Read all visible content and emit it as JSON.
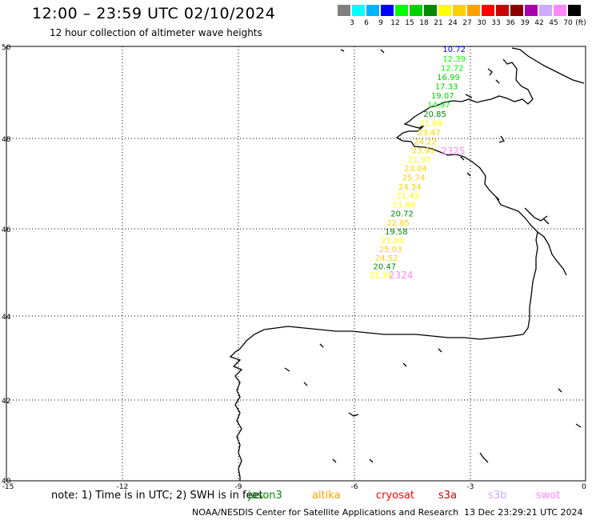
{
  "title": "12:00 – 23:59 UTC 02/10/2024",
  "subtitle": "12 hour collection of altimeter wave heights",
  "colorbar": {
    "unit": "(ft)",
    "colors": [
      "#7f7f7f",
      "#00ffff",
      "#00b4ff",
      "#0000ff",
      "#00ff00",
      "#00d000",
      "#008800",
      "#ffff00",
      "#ffd000",
      "#ffa000",
      "#ff0000",
      "#cc0000",
      "#880000",
      "#aa00aa",
      "#ccaaff",
      "#ff88ff",
      "#000000"
    ],
    "labels": [
      "3",
      "6",
      "9",
      "12",
      "15",
      "18",
      "21",
      "24",
      "27",
      "30",
      "33",
      "36",
      "39",
      "42",
      "45",
      "70"
    ]
  },
  "axes": {
    "x_ticks": [
      "-15",
      "-12",
      "-9",
      "-6",
      "-3",
      "0"
    ],
    "y_ticks": [
      "50",
      "48",
      "46",
      "44",
      "42",
      "40"
    ]
  },
  "observations": [
    {
      "label": "10.72",
      "lon": -3.7,
      "lat": 49.88,
      "color": "#0000ff"
    },
    {
      "label": "12.39",
      "lon": -3.7,
      "lat": 49.67,
      "color": "#00ff00"
    },
    {
      "label": "12.72",
      "lon": -3.75,
      "lat": 49.47,
      "color": "#00ff00"
    },
    {
      "label": "16.99",
      "lon": -3.85,
      "lat": 49.27,
      "color": "#00d000"
    },
    {
      "label": "17.33",
      "lon": -3.9,
      "lat": 49.07,
      "color": "#00d000"
    },
    {
      "label": "19.07",
      "lon": -4.0,
      "lat": 48.87,
      "color": "#00d000"
    },
    {
      "label": "14.97",
      "lon": -4.1,
      "lat": 48.67,
      "color": "#00ff00"
    },
    {
      "label": "20.85",
      "lon": -4.2,
      "lat": 48.47,
      "color": "#008800"
    },
    {
      "label": "21.88",
      "lon": -4.3,
      "lat": 48.27,
      "color": "#ffff00"
    },
    {
      "label": "23.47",
      "lon": -4.35,
      "lat": 48.07,
      "color": "#ffd000"
    },
    {
      "label": "24.22",
      "lon": -4.45,
      "lat": 47.87,
      "color": "#ffd000"
    },
    {
      "label": "23.93",
      "lon": -4.5,
      "lat": 47.67,
      "color": "#ffd000"
    },
    {
      "label": "21.97",
      "lon": -4.6,
      "lat": 47.47,
      "color": "#ffff00"
    },
    {
      "label": "23.04",
      "lon": -4.7,
      "lat": 47.27,
      "color": "#ffd000"
    },
    {
      "label": "25.74",
      "lon": -4.75,
      "lat": 47.07,
      "color": "#ffd000"
    },
    {
      "label": "24.34",
      "lon": -4.85,
      "lat": 46.87,
      "color": "#ffd000"
    },
    {
      "label": "21.43",
      "lon": -4.9,
      "lat": 46.67,
      "color": "#ffff00"
    },
    {
      "label": "21.89",
      "lon": -5.0,
      "lat": 46.47,
      "color": "#ffff00"
    },
    {
      "label": "20.72",
      "lon": -5.05,
      "lat": 46.27,
      "color": "#008800"
    },
    {
      "label": "22.65",
      "lon": -5.15,
      "lat": 46.07,
      "color": "#ffd000"
    },
    {
      "label": "19.58",
      "lon": -5.2,
      "lat": 45.87,
      "color": "#008800"
    },
    {
      "label": "21.84",
      "lon": -5.3,
      "lat": 45.67,
      "color": "#ffff00"
    },
    {
      "label": "25.03",
      "lon": -5.35,
      "lat": 45.47,
      "color": "#ffd000"
    },
    {
      "label": "24.52",
      "lon": -5.45,
      "lat": 45.27,
      "color": "#ffd000"
    },
    {
      "label": "20.47",
      "lon": -5.5,
      "lat": 45.07,
      "color": "#008800"
    },
    {
      "label": "21.34",
      "lon": -5.6,
      "lat": 44.87,
      "color": "#ffff00"
    }
  ],
  "time_stamps": [
    {
      "label": "2325",
      "lon": -3.75,
      "lat": 47.65,
      "color": "#ff88ff"
    },
    {
      "label": "2324",
      "lon": -5.1,
      "lat": 44.86,
      "color": "#ff88ff"
    }
  ],
  "note": "note: 1) Time is in UTC; 2) SWH is in feet",
  "missions": [
    {
      "label": "jason3",
      "color": "#008800"
    },
    {
      "label": "altika",
      "color": "#ffa000"
    },
    {
      "label": "cryosat",
      "color": "#ff0000"
    },
    {
      "label": "s3a",
      "color": "#cc0000"
    },
    {
      "label": "s3b",
      "color": "#ccaaff"
    },
    {
      "label": "swot",
      "color": "#ff88ff"
    }
  ],
  "footer": {
    "center": "NOAA/NESDIS Center for Satellite Applications and Research",
    "timestamp": "13 Dec 23:29:21 UTC 2024"
  }
}
